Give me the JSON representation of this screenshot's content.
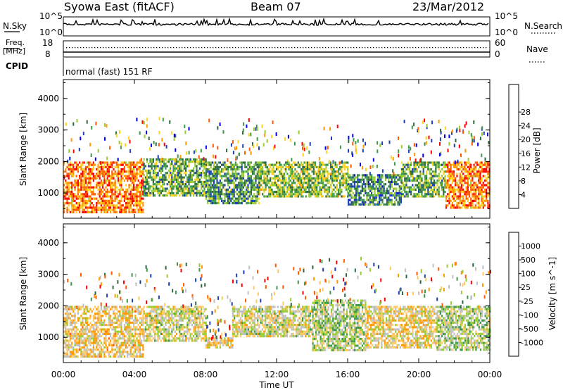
{
  "header": {
    "station": "Syowa East (fitACF)",
    "beam": "Beam 07",
    "date": "23/Mar/2012"
  },
  "top_panels": {
    "nsky_label": "N.Sky",
    "nsearch_label": "N.Search",
    "nsky_ticks": [
      "10^5",
      "10^0"
    ],
    "nsearch_ticks": [
      "10^5",
      "10^0"
    ],
    "freq_label_line1": "Freq.",
    "freq_label_line2": "[MHz]",
    "freq_ticks": [
      "18",
      "8"
    ],
    "nave_label": "Nave",
    "nave_ticks": [
      "60",
      "0"
    ],
    "cpid_label": "CPID",
    "mode_text": "normal (fast) 151 RF"
  },
  "xaxis": {
    "label": "Time UT",
    "ticks": [
      "00:00",
      "04:00",
      "08:00",
      "12:00",
      "16:00",
      "20:00",
      "00:00"
    ]
  },
  "colors": {
    "power": [
      "#0000ee",
      "#1a3fb8",
      "#2f6a3c",
      "#3e9a4a",
      "#9acd32",
      "#ffd21f",
      "#ff9a00",
      "#ff5a00",
      "#ff0000"
    ],
    "velocity": [
      "#ff0000",
      "#ff5a00",
      "#ff9a00",
      "#ffc864",
      "#c0c0c0",
      "#9acd32",
      "#3e9a4a",
      "#2f6a3c",
      "#1a3fb8"
    ]
  },
  "chart_data": [
    {
      "type": "heatmap",
      "title": "Power",
      "ylabel": "Slant Range [km]",
      "xlabel": "",
      "ylim": [
        200,
        4600
      ],
      "yticks": [
        "1000",
        "2000",
        "3000",
        "4000"
      ],
      "colorbar": {
        "label": "Power [dB]",
        "ticks": [
          "4",
          "8",
          "12",
          "16",
          "20",
          "24",
          "28"
        ],
        "range": [
          0,
          30
        ]
      },
      "regions": [
        {
          "t": [
            0,
            4.5
          ],
          "r": [
            400,
            2000
          ],
          "level": 24
        },
        {
          "t": [
            4.5,
            8
          ],
          "r": [
            900,
            2100
          ],
          "level": 12
        },
        {
          "t": [
            8,
            11
          ],
          "r": [
            700,
            2000
          ],
          "level": 10
        },
        {
          "t": [
            11,
            16
          ],
          "r": [
            900,
            2000
          ],
          "level": 14
        },
        {
          "t": [
            16,
            19
          ],
          "r": [
            600,
            1600
          ],
          "level": 9
        },
        {
          "t": [
            19,
            21.5
          ],
          "r": [
            900,
            2000
          ],
          "level": 12
        },
        {
          "t": [
            21.5,
            24
          ],
          "r": [
            500,
            2000
          ],
          "level": 24
        }
      ]
    },
    {
      "type": "heatmap",
      "title": "Velocity",
      "ylabel": "Slant Range [km]",
      "xlabel": "Time UT",
      "ylim": [
        200,
        4600
      ],
      "yticks": [
        "1000",
        "2000",
        "3000",
        "4000"
      ],
      "colorbar": {
        "label": "Velocity [m s^-1]",
        "ticks": [
          "1000",
          "500",
          "100",
          "25",
          "-25",
          "-100",
          "-500",
          "-1000"
        ],
        "range": [
          -1000,
          1000
        ]
      },
      "regions": [
        {
          "t": [
            0,
            4.5
          ],
          "r": [
            400,
            2000
          ],
          "velocity": -200
        },
        {
          "t": [
            4.5,
            8
          ],
          "r": [
            900,
            2000
          ],
          "velocity": 0
        },
        {
          "t": [
            8,
            9.5
          ],
          "r": [
            700,
            1000
          ],
          "velocity": -150
        },
        {
          "t": [
            9.5,
            14
          ],
          "r": [
            1000,
            2000
          ],
          "velocity": 0
        },
        {
          "t": [
            14,
            17
          ],
          "r": [
            600,
            2200
          ],
          "velocity": 150
        },
        {
          "t": [
            17,
            21
          ],
          "r": [
            700,
            2000
          ],
          "velocity": -150
        },
        {
          "t": [
            21,
            24
          ],
          "r": [
            600,
            2000
          ],
          "velocity": 150
        }
      ]
    }
  ]
}
